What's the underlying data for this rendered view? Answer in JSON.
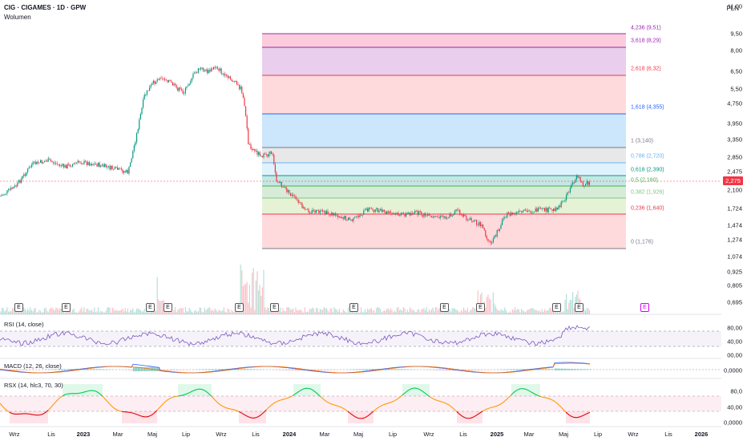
{
  "header": {
    "symbol_line": "CIG · CIGAMES · 1D · GPW",
    "volume_label": "Wolumen",
    "currency": "PLN"
  },
  "price_axis": [
    "11,00",
    "9,50",
    "8,00",
    "6,50",
    "5,50",
    "4,750",
    "3,950",
    "3,350",
    "2,850",
    "2,475",
    "2,100",
    "1,724",
    "1,474",
    "1,274",
    "1,074",
    "0,925",
    "0,805",
    "0,695"
  ],
  "current_price": "2,275",
  "fib_levels": [
    {
      "label": "4,236 (9,51)",
      "color": "#9c27b0"
    },
    {
      "label": "3,618 (8,29)",
      "color": "#9c27b0"
    },
    {
      "label": "2,618 (6,32)",
      "color": "#f23645"
    },
    {
      "label": "1,618 (4,355)",
      "color": "#2962ff"
    },
    {
      "label": "1 (3,140)",
      "color": "#787b86"
    },
    {
      "label": "0,786 (2,720)",
      "color": "#64b5f6"
    },
    {
      "label": "0,618 (2,390)",
      "color": "#089981"
    },
    {
      "label": "0,5 (2,160)",
      "color": "#4caf50"
    },
    {
      "label": "0,382 (1,926)",
      "color": "#81c784"
    },
    {
      "label": "0,236 (1,640)",
      "color": "#f23645"
    },
    {
      "label": "0 (1,176)",
      "color": "#787b86"
    }
  ],
  "earnings_marker": "E",
  "rsi": {
    "label": "RSI (14, close)",
    "axis": [
      "80,00",
      "40,00",
      "00,00"
    ]
  },
  "macd": {
    "label": "MACD (12, 26, close)",
    "axis": [
      "0,0000"
    ]
  },
  "rsx": {
    "label": "RSX (14, hlc3, 70, 30)",
    "axis": [
      "80,0",
      "40,00",
      "0,0000"
    ]
  },
  "x_axis": [
    {
      "label": "Wrz",
      "bold": false
    },
    {
      "label": "Lis",
      "bold": false
    },
    {
      "label": "2023",
      "bold": true
    },
    {
      "label": "Mar",
      "bold": false
    },
    {
      "label": "Maj",
      "bold": false
    },
    {
      "label": "Lip",
      "bold": false
    },
    {
      "label": "Wrz",
      "bold": false
    },
    {
      "label": "Lis",
      "bold": false
    },
    {
      "label": "2024",
      "bold": true
    },
    {
      "label": "Mar",
      "bold": false
    },
    {
      "label": "Maj",
      "bold": false
    },
    {
      "label": "Lip",
      "bold": false
    },
    {
      "label": "Wrz",
      "bold": false
    },
    {
      "label": "Lis",
      "bold": false
    },
    {
      "label": "2025",
      "bold": true
    },
    {
      "label": "Mar",
      "bold": false
    },
    {
      "label": "Maj",
      "bold": false
    },
    {
      "label": "Lip",
      "bold": false
    },
    {
      "label": "Wrz",
      "bold": false
    },
    {
      "label": "Lis",
      "bold": false
    },
    {
      "label": "2026",
      "bold": true
    }
  ],
  "colors": {
    "up": "#089981",
    "down": "#f23645",
    "rsi": "#7e57c2",
    "macd": "#2962ff",
    "signal": "#ff6d00",
    "rsx": "#ff9800"
  }
}
